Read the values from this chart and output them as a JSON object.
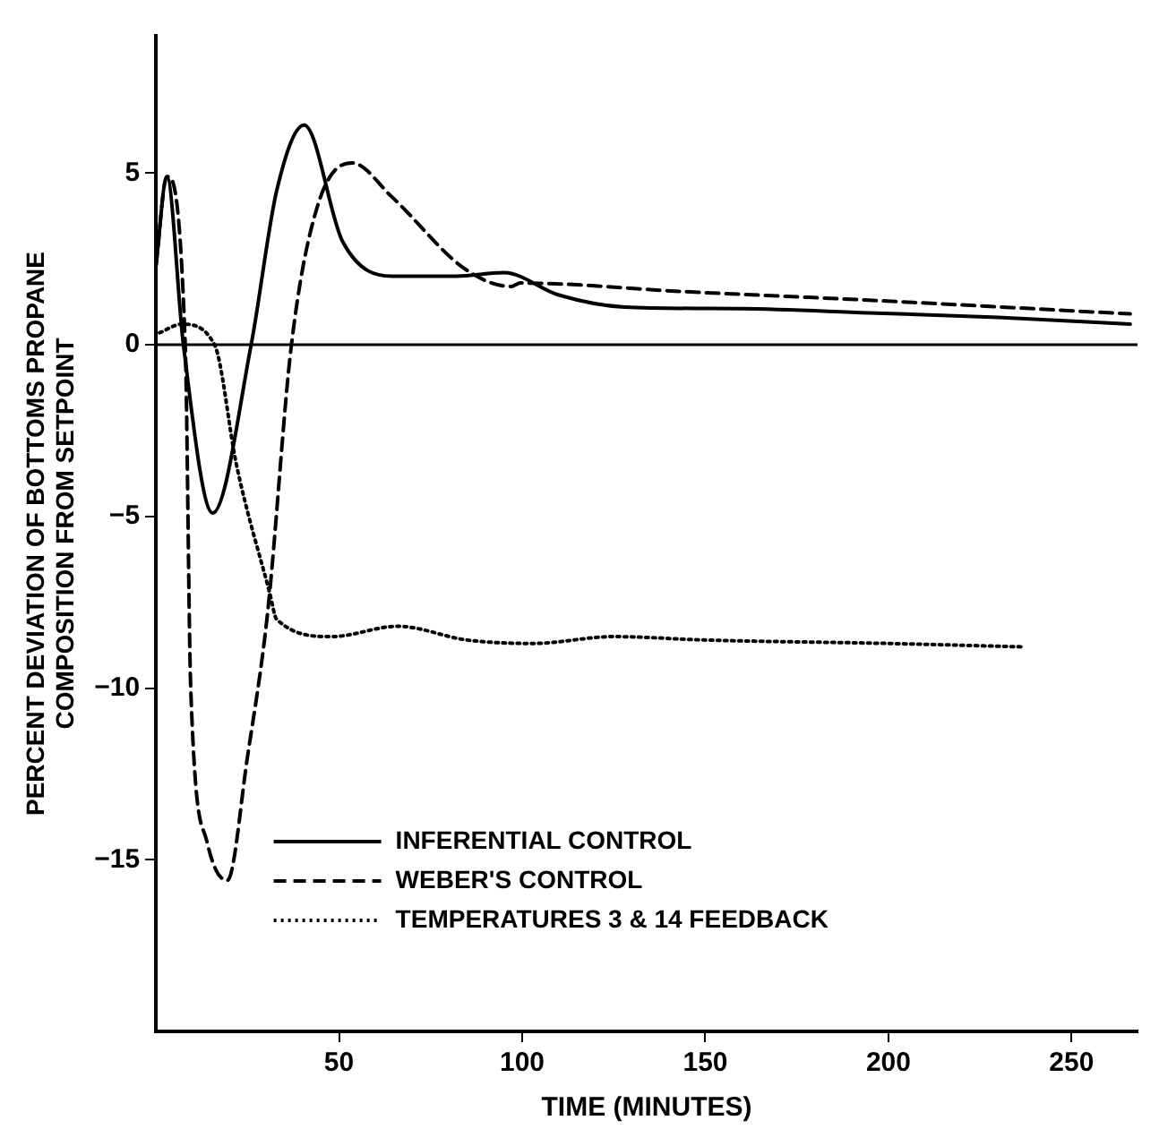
{
  "chart_data": {
    "type": "line",
    "xlabel": "TIME (MINUTES)",
    "ylabel": "PERCENT DEVIATION OF BOTTOMS PROPANE\nCOMPOSITION FROM SETPOINT",
    "xlim": [
      0,
      268
    ],
    "xticks": [
      50,
      100,
      150,
      200,
      250
    ],
    "ylim": [
      -20,
      9
    ],
    "yticks": [
      -15,
      -10,
      -5,
      0,
      5
    ],
    "grid": false,
    "legend": "bottom",
    "marker": "none",
    "ref_lines": [
      {
        "axis": "y",
        "value": 0,
        "color": "#000000"
      }
    ],
    "series": [
      {
        "name": "INFERENTIAL CONTROL",
        "color": "#000000",
        "line_style": "solid",
        "x": [
          0,
          3,
          7.5,
          15.5,
          26,
          33,
          40.5,
          51,
          64.5,
          82,
          95,
          110,
          128,
          160,
          194.5,
          230,
          266
        ],
        "values": [
          2.3,
          4.9,
          0,
          -4.9,
          0,
          4.5,
          6.4,
          3,
          2.0,
          2.0,
          2.1,
          1.45,
          1.1,
          1.05,
          0.93,
          0.8,
          0.6
        ]
      },
      {
        "name": "WEBER'S CONTROL",
        "color": "#000000",
        "line_style": "dashed",
        "x": [
          0,
          3,
          8,
          9.5,
          14,
          19.5,
          25,
          30.5,
          37,
          44,
          53.5,
          64.5,
          84.5,
          97,
          99.5,
          144,
          194.5,
          266
        ],
        "values": [
          2.3,
          4.9,
          0,
          -10,
          -14.5,
          -15.6,
          -12,
          -7.8,
          0,
          4,
          5.3,
          4.3,
          2.2,
          1.7,
          1.8,
          1.55,
          1.3,
          0.9
        ]
      },
      {
        "name": "TEMPERATURES 3 & 14 FEEDBACK",
        "color": "#000000",
        "line_style": "dotted",
        "x": [
          1,
          7,
          16,
          22,
          31,
          33,
          48,
          66,
          85,
          103,
          125,
          150,
          200,
          237
        ],
        "values": [
          0.35,
          0.6,
          0,
          -3.5,
          -7.2,
          -8.0,
          -8.5,
          -8.2,
          -8.6,
          -8.7,
          -8.5,
          -8.6,
          -8.7,
          -8.8
        ]
      }
    ]
  }
}
